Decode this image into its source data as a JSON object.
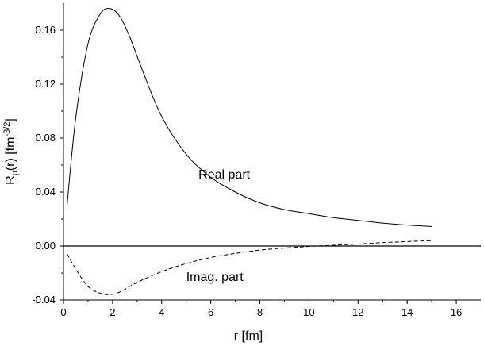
{
  "chart_data": {
    "type": "line",
    "xlabel": "r [fm]",
    "ylabel": {
      "base": "R",
      "sub": "p",
      "mid": "(r) [fm",
      "sup": "-3/2",
      "end": "]"
    },
    "xlim": [
      0,
      17
    ],
    "ylim": [
      -0.04,
      0.18
    ],
    "x_ticks": [
      0,
      2,
      4,
      6,
      8,
      10,
      12,
      14,
      16
    ],
    "y_ticks": [
      -0.04,
      0.0,
      0.04,
      0.08,
      0.12,
      0.16
    ],
    "x_tick_labels": [
      "0",
      "2",
      "4",
      "6",
      "8",
      "10",
      "12",
      "14",
      "16"
    ],
    "y_tick_labels": [
      "-0.04",
      "0.00",
      "0.04",
      "0.08",
      "0.12",
      "0.16"
    ],
    "zero_line": true,
    "series": [
      {
        "name": "Real part",
        "style": "solid",
        "x": [
          0.15,
          0.5,
          1.0,
          1.5,
          1.9,
          2.3,
          2.7,
          3.2,
          4.0,
          5.0,
          6.0,
          7.0,
          8.0,
          9.0,
          10.0,
          11.0,
          12.0,
          13.0,
          14.0,
          15.0
        ],
        "y": [
          0.031,
          0.095,
          0.15,
          0.172,
          0.176,
          0.17,
          0.155,
          0.131,
          0.096,
          0.068,
          0.051,
          0.04,
          0.032,
          0.027,
          0.024,
          0.021,
          0.019,
          0.017,
          0.0155,
          0.0145
        ]
      },
      {
        "name": "Imag. part",
        "style": "dashed",
        "x": [
          0.15,
          0.5,
          1.0,
          1.5,
          1.9,
          2.3,
          3.0,
          4.0,
          5.0,
          6.0,
          7.0,
          8.0,
          9.0,
          10.0,
          11.0,
          12.0,
          13.0,
          14.0,
          15.0
        ],
        "y": [
          -0.006,
          -0.017,
          -0.03,
          -0.035,
          -0.036,
          -0.034,
          -0.027,
          -0.019,
          -0.013,
          -0.0085,
          -0.0055,
          -0.003,
          -0.0015,
          -0.0003,
          0.0006,
          0.0015,
          0.0025,
          0.0033,
          0.004
        ]
      }
    ],
    "labels": [
      {
        "text": "Real part",
        "x": 5.5,
        "y": 0.05
      },
      {
        "text": "Imag. part",
        "x": 5.0,
        "y": -0.026
      }
    ]
  },
  "colors": {
    "line": "#000000",
    "background": "#ffffff"
  }
}
